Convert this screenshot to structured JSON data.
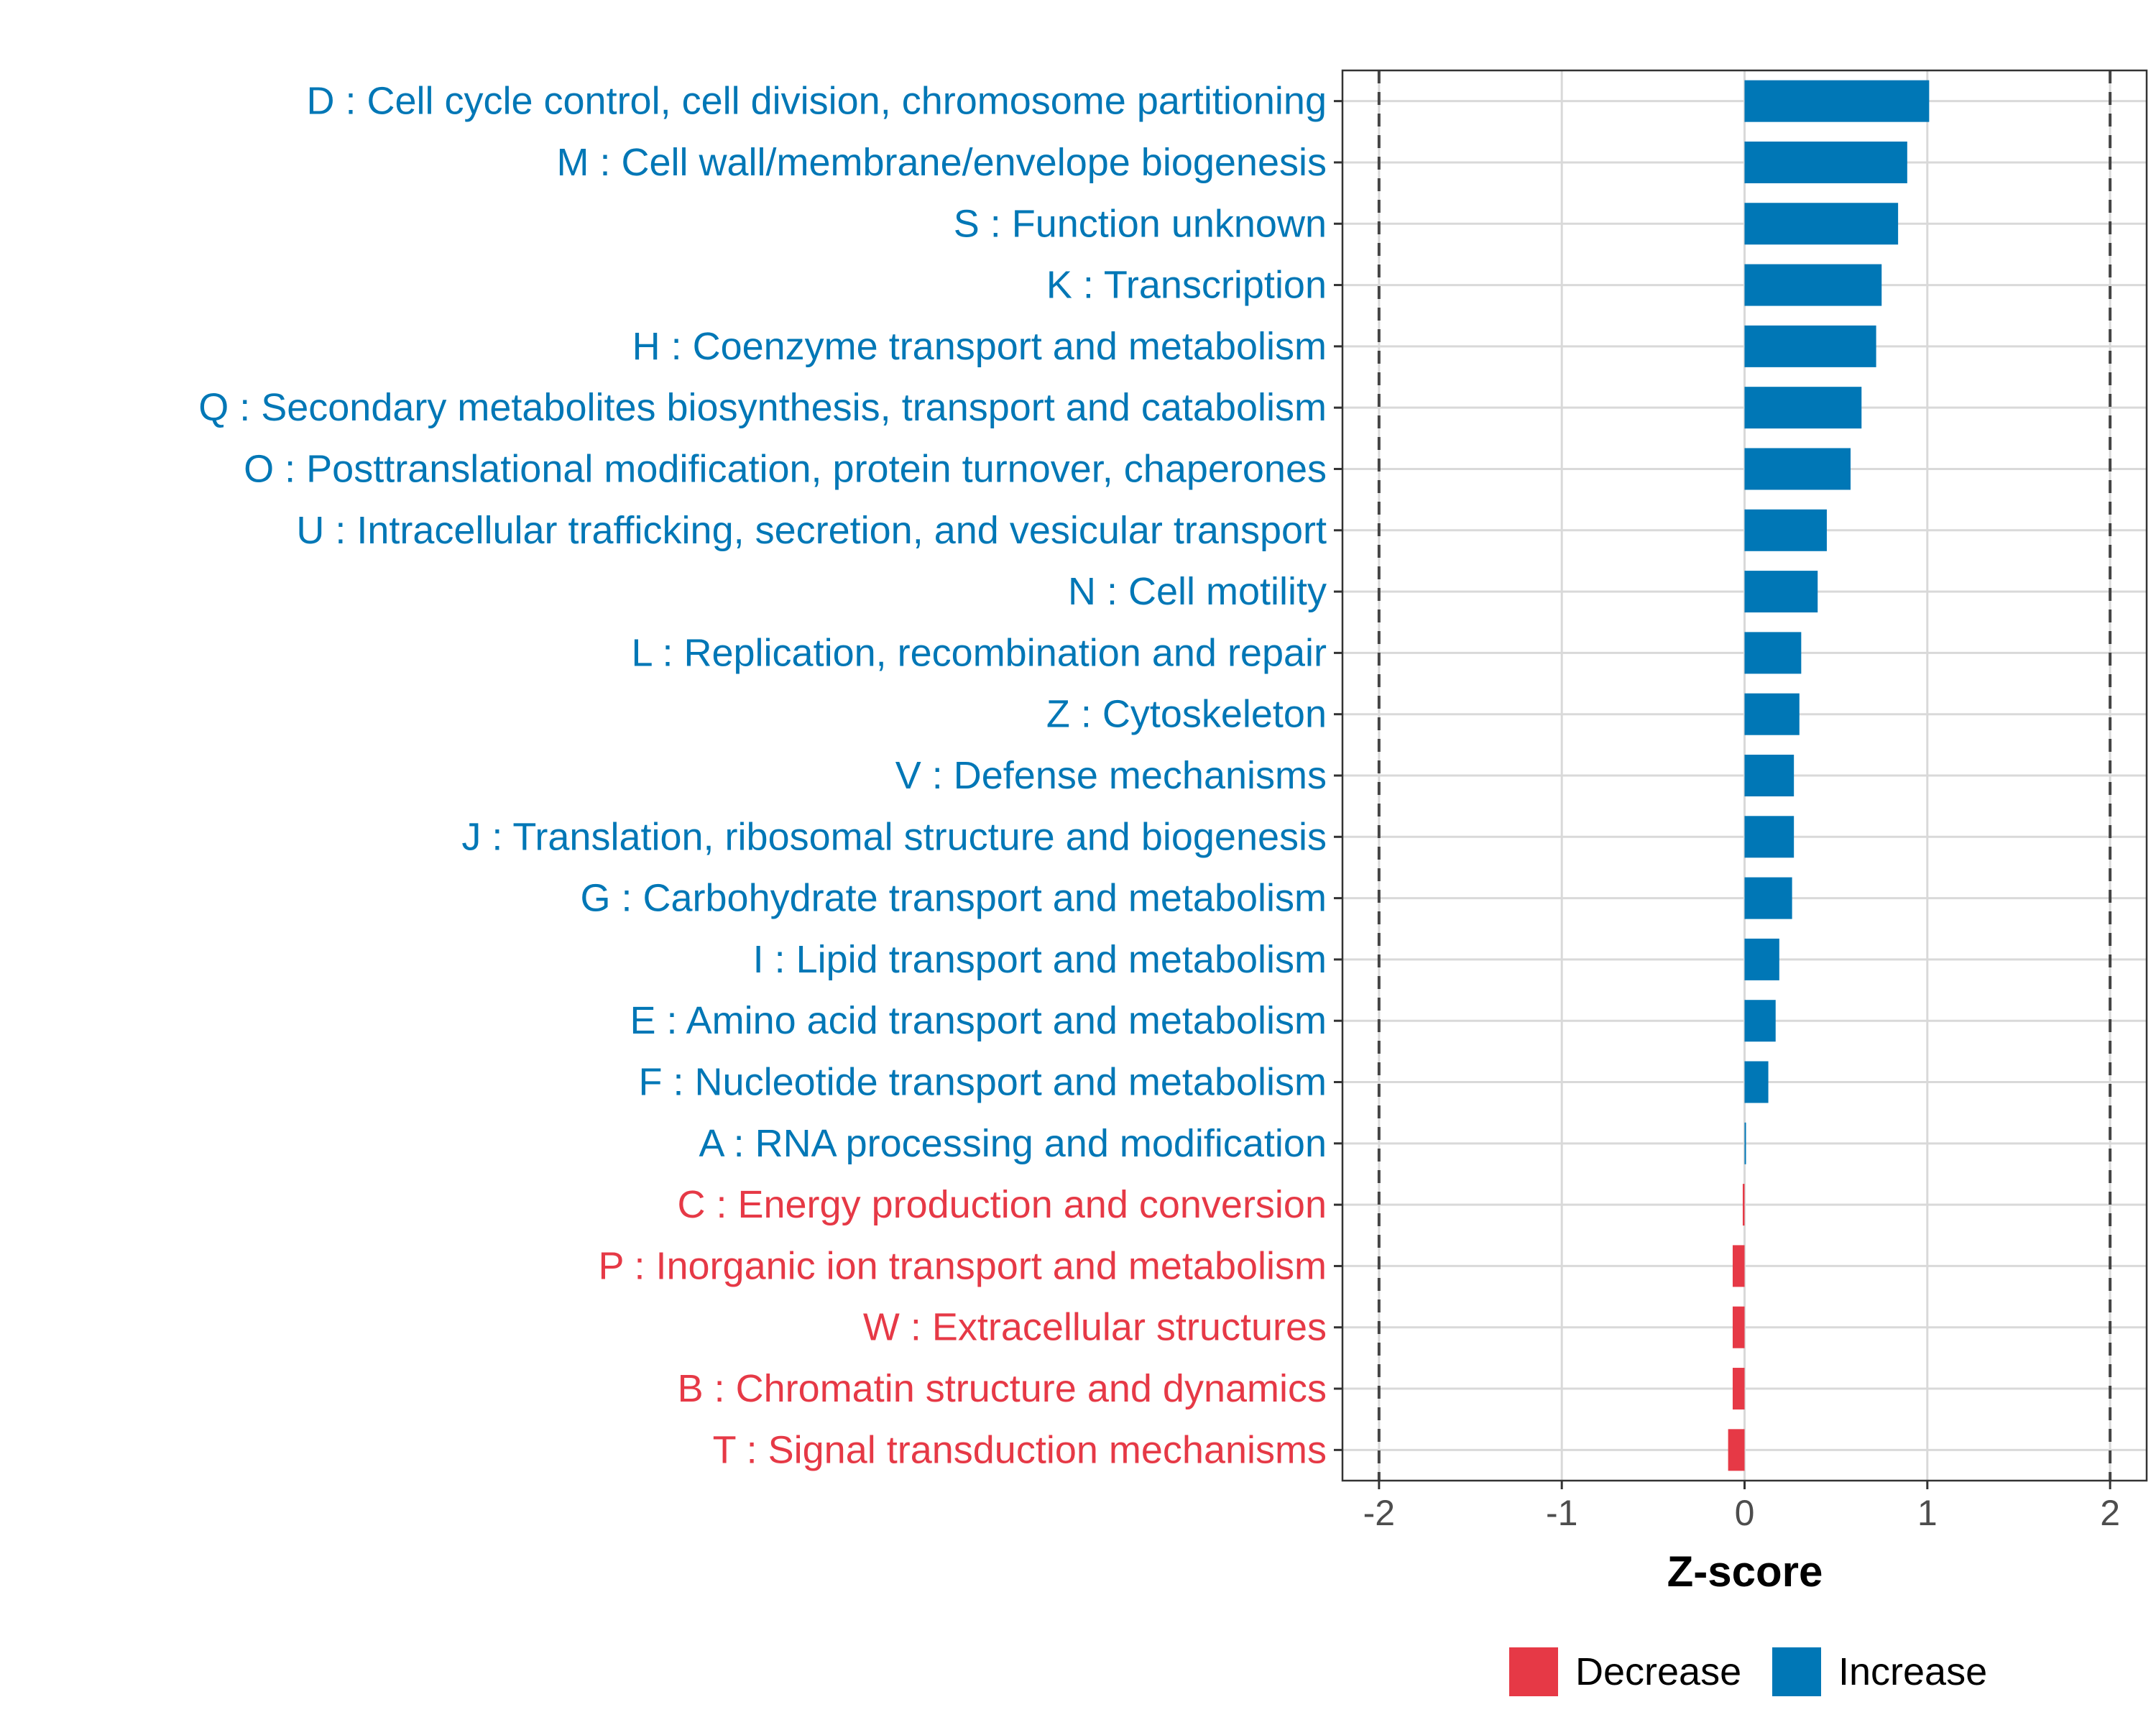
{
  "chart_data": {
    "type": "bar",
    "orientation": "horizontal",
    "xlabel": "Z-score",
    "xlim": [
      -2.2,
      2.2
    ],
    "xticks": [
      -2,
      -1,
      0,
      1,
      2
    ],
    "xtick_labels": [
      "-2",
      "-1",
      "0",
      "1",
      "2"
    ],
    "reference_lines": [
      -2,
      2
    ],
    "grid": true,
    "legend_position": "bottom",
    "colors": {
      "Decrease": "#e63946",
      "Increase": "#0077b6"
    },
    "legend": [
      {
        "label": "Decrease",
        "color": "#e63946"
      },
      {
        "label": "Increase",
        "color": "#0077b6"
      }
    ],
    "categories": [
      "D : Cell cycle control, cell division, chromosome partitioning",
      "M : Cell wall/membrane/envelope biogenesis",
      "S : Function unknown",
      "K : Transcription",
      "H : Coenzyme transport and metabolism",
      "Q : Secondary metabolites biosynthesis, transport and catabolism",
      "O : Posttranslational modification, protein turnover, chaperones",
      "U : Intracellular trafficking, secretion, and vesicular transport",
      "N : Cell motility",
      "L : Replication, recombination and repair",
      "Z : Cytoskeleton",
      "V : Defense mechanisms",
      "J : Translation, ribosomal structure and biogenesis",
      "G : Carbohydrate transport and metabolism",
      "I : Lipid transport and metabolism",
      "E : Amino acid transport and metabolism",
      "F : Nucleotide transport and metabolism",
      "A : RNA processing and modification",
      "C : Energy production and conversion",
      "P : Inorganic ion transport and metabolism",
      "W : Extracellular structures",
      "B : Chromatin structure and dynamics",
      "T : Signal transduction mechanisms"
    ],
    "values": [
      1.01,
      0.89,
      0.84,
      0.75,
      0.72,
      0.64,
      0.58,
      0.45,
      0.4,
      0.31,
      0.3,
      0.27,
      0.27,
      0.26,
      0.19,
      0.17,
      0.13,
      0.005,
      -0.01,
      -0.065,
      -0.065,
      -0.065,
      -0.09
    ],
    "direction": [
      "Increase",
      "Increase",
      "Increase",
      "Increase",
      "Increase",
      "Increase",
      "Increase",
      "Increase",
      "Increase",
      "Increase",
      "Increase",
      "Increase",
      "Increase",
      "Increase",
      "Increase",
      "Increase",
      "Increase",
      "Increase",
      "Decrease",
      "Decrease",
      "Decrease",
      "Decrease",
      "Decrease"
    ]
  }
}
